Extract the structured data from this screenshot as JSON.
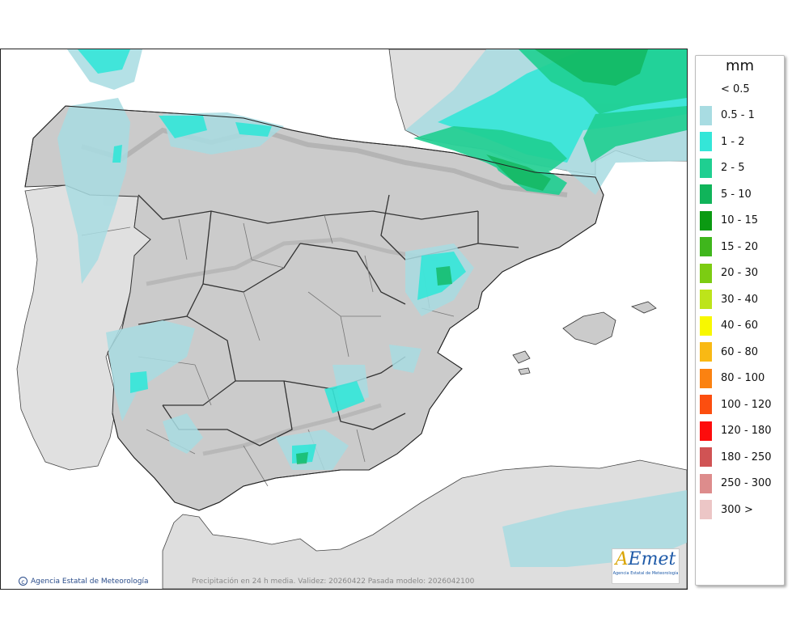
{
  "legend": {
    "unit": "mm",
    "items": [
      {
        "label": "< 0.5",
        "color": null
      },
      {
        "label": "0.5 - 1",
        "color": "#a8dce2"
      },
      {
        "label": "1 - 2",
        "color": "#34e6d8"
      },
      {
        "label": "2 - 5",
        "color": "#1fcf91"
      },
      {
        "label": "5 - 10",
        "color": "#10b45a"
      },
      {
        "label": "10 - 15",
        "color": "#0b9a12"
      },
      {
        "label": "15 - 20",
        "color": "#3fb61c"
      },
      {
        "label": "20 - 30",
        "color": "#7ccc12"
      },
      {
        "label": "30 - 40",
        "color": "#bde41a"
      },
      {
        "label": "40 - 60",
        "color": "#f8f800"
      },
      {
        "label": "60 - 80",
        "color": "#f9b914"
      },
      {
        "label": "80 - 100",
        "color": "#fb8211"
      },
      {
        "label": "100 - 120",
        "color": "#fc4e0f"
      },
      {
        "label": "120 - 180",
        "color": "#fd0c0c"
      },
      {
        "label": "180 - 250",
        "color": "#d05354"
      },
      {
        "label": "250 - 300",
        "color": "#dd8c8c"
      },
      {
        "label": "300 >",
        "color": "#ecc6c6"
      }
    ]
  },
  "map": {
    "copyright": "Agencia Estatal de Meteorología",
    "caption": "Precipitación en 24 h media. Validez: 20260422 Pasada modelo: 2026042100",
    "logo": {
      "mark_a": "A",
      "mark_rest": "Emet",
      "subtitle": "Agencia Estatal de Meteorología"
    },
    "colors": {
      "sea": "#ffffff",
      "land": "#d7d7d7",
      "peninsula": "#c9c9c9",
      "border": "#222222"
    }
  }
}
